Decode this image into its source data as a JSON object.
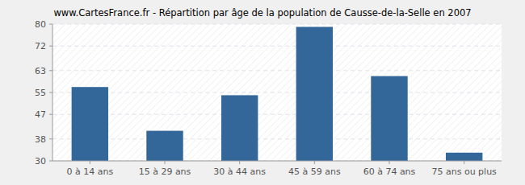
{
  "chart_data": {
    "type": "bar",
    "title": "www.CartesFrance.fr - Répartition par âge de la population de Causse-de-la-Selle en 2007",
    "categories": [
      "0 à 14 ans",
      "15 à 29 ans",
      "30 à 44 ans",
      "45 à 59 ans",
      "60 à 74 ans",
      "75 ans ou plus"
    ],
    "values": [
      57,
      41,
      54,
      79,
      61,
      33
    ],
    "color": "#336699",
    "ylim": [
      30,
      80
    ],
    "yticks": [
      30,
      38,
      47,
      55,
      63,
      72,
      80
    ],
    "grid": true
  }
}
